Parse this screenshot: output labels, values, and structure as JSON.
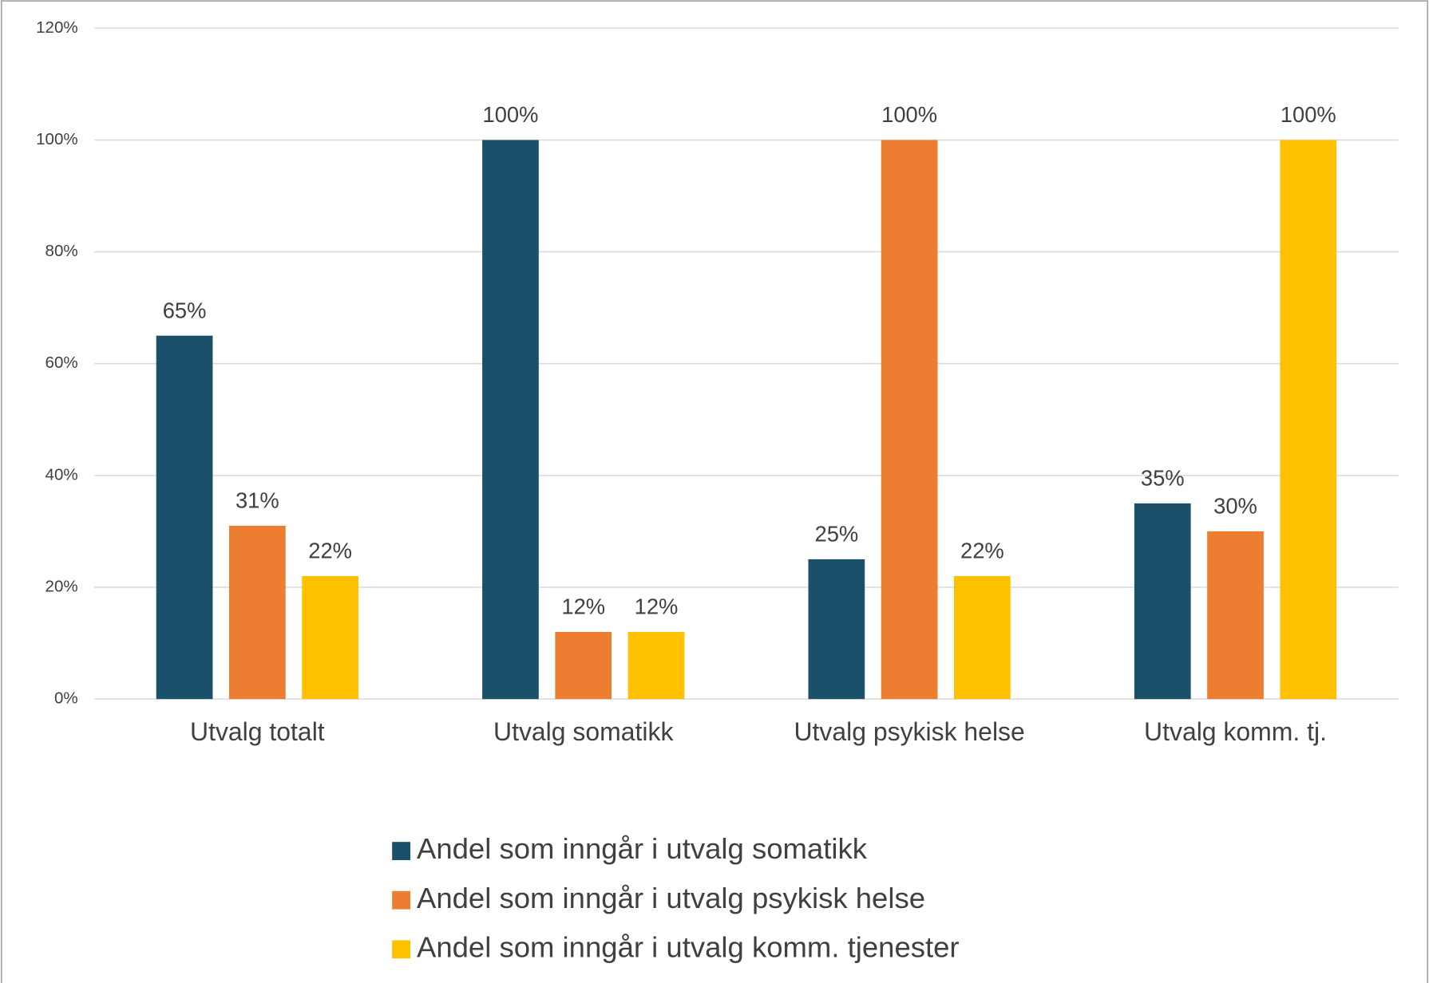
{
  "chart_data": {
    "type": "bar",
    "categories": [
      "Utvalg totalt",
      "Utvalg somatikk",
      "Utvalg psykisk helse",
      "Utvalg komm. tj."
    ],
    "series": [
      {
        "name": "Andel som inngår i utvalg somatikk",
        "color": "#1a5069",
        "values": [
          65,
          100,
          25,
          35
        ],
        "value_labels": [
          "65%",
          "100%",
          "25%",
          "35%"
        ]
      },
      {
        "name": "Andel som inngår i utvalg psykisk helse",
        "color": "#ed7d31",
        "values": [
          31,
          12,
          100,
          30
        ],
        "value_labels": [
          "31%",
          "12%",
          "100%",
          "30%"
        ]
      },
      {
        "name": "Andel som inngår i utvalg komm. tjenester",
        "color": "#ffc000",
        "values": [
          22,
          12,
          22,
          100
        ],
        "value_labels": [
          "22%",
          "12%",
          "22%",
          "100%"
        ]
      }
    ],
    "ylim": [
      0,
      120
    ],
    "yticks": [
      {
        "value": 0,
        "label": "0%"
      },
      {
        "value": 20,
        "label": "20%"
      },
      {
        "value": 40,
        "label": "40%"
      },
      {
        "value": 60,
        "label": "60%"
      },
      {
        "value": 80,
        "label": "80%"
      },
      {
        "value": 100,
        "label": "100%"
      },
      {
        "value": 120,
        "label": "120%"
      }
    ],
    "grid": true,
    "legend": "bottom"
  }
}
